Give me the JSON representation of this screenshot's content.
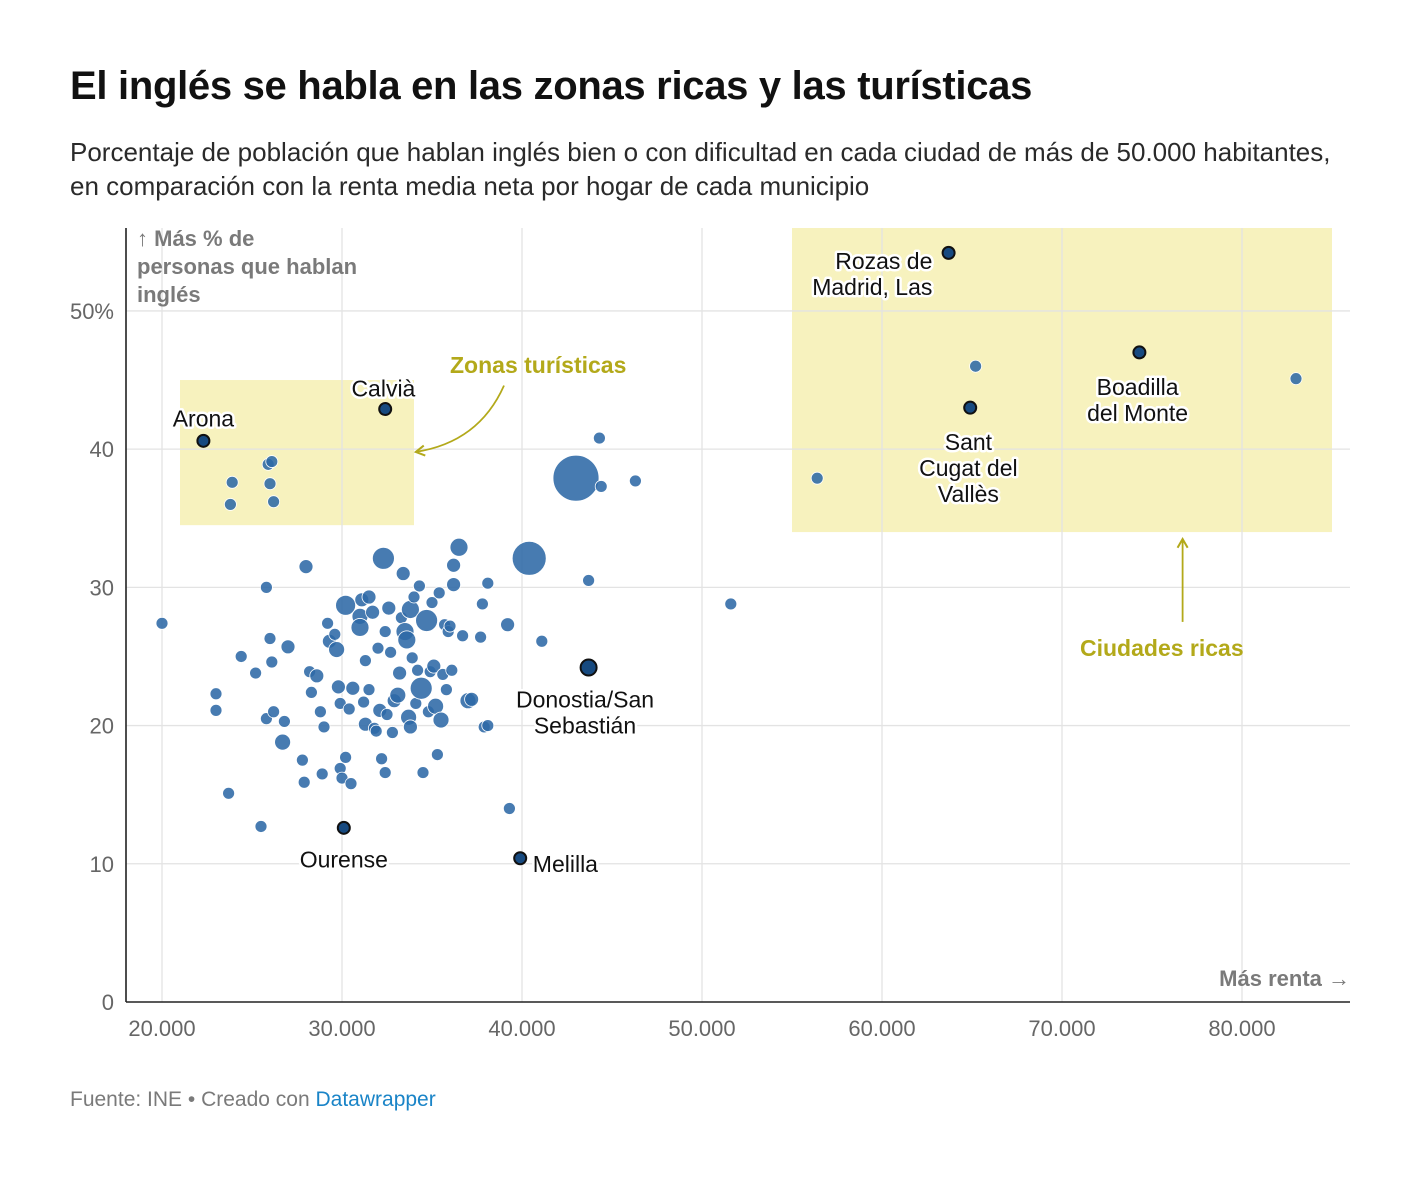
{
  "title": "El inglés se habla en las zonas ricas y las turísticas",
  "subtitle": "Porcentaje de población que hablan inglés bien o con dificultad en cada ciudad de más de 50.000 habitantes, en comparación con la renta media neta por hogar de cada municipio",
  "footer": {
    "source": "Fuente: INE • Creado con",
    "tool": "Datawrapper"
  },
  "colors": {
    "dot": "#2e69a6",
    "highlight": "#174a80",
    "zone": "#f7f2be",
    "zone_text": "#b3a91a",
    "grid": "#e3e3e3"
  },
  "chart_data": {
    "type": "scatter",
    "title": "El inglés se habla en las zonas ricas y las turísticas",
    "xlabel": "Más renta →",
    "ylabel": [
      "↑ Más % de",
      "personas que hablan",
      "inglés"
    ],
    "xlim": [
      18000,
      86000
    ],
    "ylim": [
      0,
      56
    ],
    "xticks": [
      {
        "v": 20000,
        "label": "20.000"
      },
      {
        "v": 30000,
        "label": "30.000"
      },
      {
        "v": 40000,
        "label": "40.000"
      },
      {
        "v": 50000,
        "label": "50.000"
      },
      {
        "v": 60000,
        "label": "60.000"
      },
      {
        "v": 70000,
        "label": "70.000"
      },
      {
        "v": 80000,
        "label": "80.000"
      }
    ],
    "yticks": [
      {
        "v": 0,
        "label": "0"
      },
      {
        "v": 10,
        "label": "10"
      },
      {
        "v": 20,
        "label": "20"
      },
      {
        "v": 30,
        "label": "30"
      },
      {
        "v": 40,
        "label": "40"
      },
      {
        "v": 50,
        "label": "50%"
      }
    ],
    "zones": [
      {
        "name": "Zonas turísticas",
        "x0": 21000,
        "x1": 34000,
        "y0": 34.5,
        "y1": 45
      },
      {
        "name": "Ciudades ricas",
        "x0": 55000,
        "x1": 85000,
        "y0": 34,
        "y1": 56
      }
    ],
    "zone_labels": [
      {
        "text": "Zonas turísticas",
        "x": 36000,
        "y": 46.1,
        "anchor": "start",
        "arrow": [
          [
            39000,
            44.6
          ],
          [
            37600,
            40.5
          ],
          [
            34100,
            39.8
          ]
        ]
      },
      {
        "text": "Ciudades ricas",
        "x": 71000,
        "y": 25.6,
        "anchor": "start",
        "arrow": [
          [
            76700,
            27.5
          ],
          [
            76700,
            33.5
          ]
        ]
      }
    ],
    "labeled_points": [
      {
        "name": "Rozas de Madrid, Las",
        "lines": [
          "Rozas de",
          "Madrid, Las"
        ],
        "x": 63700,
        "y": 54.2,
        "lx": 62800,
        "ly": 53.6,
        "anchor": "end"
      },
      {
        "name": "Boadilla del Monte",
        "lines": [
          "Boadilla",
          "del Monte"
        ],
        "x": 74300,
        "y": 47,
        "lx": 74200,
        "ly": 44.5,
        "anchor": "middle"
      },
      {
        "name": "Sant Cugat del Vallès",
        "lines": [
          "Sant",
          "Cugat del",
          "Vallès"
        ],
        "x": 64900,
        "y": 43,
        "lx": 64800,
        "ly": 40.5,
        "anchor": "middle"
      },
      {
        "name": "Calvià",
        "lines": [
          "Calvià"
        ],
        "x": 32400,
        "y": 42.9,
        "lx": 32300,
        "ly": 44.4,
        "anchor": "middle"
      },
      {
        "name": "Arona",
        "lines": [
          "Arona"
        ],
        "x": 22300,
        "y": 40.6,
        "lx": 22300,
        "ly": 42.2,
        "anchor": "middle"
      },
      {
        "name": "Donostia/San Sebastián",
        "lines": [
          "Donostia/San",
          "Sebastián"
        ],
        "x": 43700,
        "y": 24.2,
        "lx": 43500,
        "ly": 21.9,
        "anchor": "middle",
        "r": 8
      },
      {
        "name": "Ourense",
        "lines": [
          "Ourense"
        ],
        "x": 30100,
        "y": 12.6,
        "lx": 30100,
        "ly": 10.3,
        "anchor": "middle"
      },
      {
        "name": "Melilla",
        "lines": [
          "Melilla"
        ],
        "x": 39900,
        "y": 10.4,
        "lx": 40600,
        "ly": 10,
        "anchor": "start"
      }
    ],
    "points": [
      {
        "x": 20000,
        "y": 27.4,
        "r": 6
      },
      {
        "x": 23000,
        "y": 22.3,
        "r": 6
      },
      {
        "x": 23000,
        "y": 21.1,
        "r": 6
      },
      {
        "x": 23700,
        "y": 15.1,
        "r": 6
      },
      {
        "x": 23900,
        "y": 37.6,
        "r": 6
      },
      {
        "x": 23800,
        "y": 36,
        "r": 6
      },
      {
        "x": 24400,
        "y": 25,
        "r": 6
      },
      {
        "x": 25200,
        "y": 23.8,
        "r": 6
      },
      {
        "x": 25500,
        "y": 12.7,
        "r": 6
      },
      {
        "x": 25800,
        "y": 20.5,
        "r": 6
      },
      {
        "x": 25900,
        "y": 38.9,
        "r": 6
      },
      {
        "x": 26100,
        "y": 39.1,
        "r": 6
      },
      {
        "x": 26000,
        "y": 37.5,
        "r": 6
      },
      {
        "x": 26200,
        "y": 36.2,
        "r": 6
      },
      {
        "x": 25800,
        "y": 30,
        "r": 6
      },
      {
        "x": 26000,
        "y": 26.3,
        "r": 6
      },
      {
        "x": 26100,
        "y": 24.6,
        "r": 6
      },
      {
        "x": 26200,
        "y": 21,
        "r": 6
      },
      {
        "x": 26700,
        "y": 18.8,
        "r": 8
      },
      {
        "x": 26800,
        "y": 20.3,
        "r": 6
      },
      {
        "x": 27000,
        "y": 25.7,
        "r": 7
      },
      {
        "x": 27800,
        "y": 17.5,
        "r": 6
      },
      {
        "x": 27900,
        "y": 15.9,
        "r": 6
      },
      {
        "x": 28000,
        "y": 31.5,
        "r": 7
      },
      {
        "x": 28200,
        "y": 23.9,
        "r": 6
      },
      {
        "x": 28300,
        "y": 22.4,
        "r": 6
      },
      {
        "x": 28600,
        "y": 23.6,
        "r": 7
      },
      {
        "x": 28800,
        "y": 21,
        "r": 6
      },
      {
        "x": 28900,
        "y": 16.5,
        "r": 6
      },
      {
        "x": 29000,
        "y": 19.9,
        "r": 6
      },
      {
        "x": 29200,
        "y": 27.4,
        "r": 6
      },
      {
        "x": 29300,
        "y": 26.1,
        "r": 7
      },
      {
        "x": 29600,
        "y": 26.6,
        "r": 6
      },
      {
        "x": 29700,
        "y": 25.5,
        "r": 8
      },
      {
        "x": 29800,
        "y": 22.8,
        "r": 7
      },
      {
        "x": 29900,
        "y": 21.6,
        "r": 6
      },
      {
        "x": 29900,
        "y": 16.9,
        "r": 6
      },
      {
        "x": 30000,
        "y": 16.2,
        "r": 6
      },
      {
        "x": 30200,
        "y": 17.7,
        "r": 6
      },
      {
        "x": 30200,
        "y": 28.7,
        "r": 10
      },
      {
        "x": 30400,
        "y": 21.2,
        "r": 6
      },
      {
        "x": 30500,
        "y": 15.8,
        "r": 6
      },
      {
        "x": 30600,
        "y": 22.7,
        "r": 7
      },
      {
        "x": 31000,
        "y": 27.9,
        "r": 8
      },
      {
        "x": 31100,
        "y": 29.1,
        "r": 7
      },
      {
        "x": 31000,
        "y": 27.1,
        "r": 9
      },
      {
        "x": 31200,
        "y": 21.7,
        "r": 6
      },
      {
        "x": 31300,
        "y": 20.1,
        "r": 7
      },
      {
        "x": 31300,
        "y": 24.7,
        "r": 6
      },
      {
        "x": 31500,
        "y": 29.3,
        "r": 7
      },
      {
        "x": 31500,
        "y": 22.6,
        "r": 6
      },
      {
        "x": 31700,
        "y": 28.2,
        "r": 7
      },
      {
        "x": 31800,
        "y": 19.8,
        "r": 6
      },
      {
        "x": 31900,
        "y": 19.6,
        "r": 6
      },
      {
        "x": 32000,
        "y": 25.6,
        "r": 6
      },
      {
        "x": 32100,
        "y": 21.1,
        "r": 7
      },
      {
        "x": 32200,
        "y": 17.6,
        "r": 6
      },
      {
        "x": 32300,
        "y": 32.1,
        "r": 11
      },
      {
        "x": 32400,
        "y": 26.8,
        "r": 6
      },
      {
        "x": 32400,
        "y": 16.6,
        "r": 6
      },
      {
        "x": 32500,
        "y": 20.8,
        "r": 6
      },
      {
        "x": 32600,
        "y": 28.5,
        "r": 7
      },
      {
        "x": 32700,
        "y": 25.3,
        "r": 6
      },
      {
        "x": 32800,
        "y": 19.5,
        "r": 6
      },
      {
        "x": 32900,
        "y": 21.8,
        "r": 7
      },
      {
        "x": 33100,
        "y": 22.2,
        "r": 8
      },
      {
        "x": 33200,
        "y": 23.8,
        "r": 7
      },
      {
        "x": 33300,
        "y": 27.8,
        "r": 6
      },
      {
        "x": 33400,
        "y": 31,
        "r": 7
      },
      {
        "x": 33500,
        "y": 26.8,
        "r": 9
      },
      {
        "x": 33600,
        "y": 26.2,
        "r": 9
      },
      {
        "x": 33700,
        "y": 20.6,
        "r": 8
      },
      {
        "x": 33800,
        "y": 28.4,
        "r": 9
      },
      {
        "x": 33800,
        "y": 19.9,
        "r": 7
      },
      {
        "x": 33900,
        "y": 24.9,
        "r": 6
      },
      {
        "x": 34000,
        "y": 29.3,
        "r": 6
      },
      {
        "x": 34100,
        "y": 21.6,
        "r": 6
      },
      {
        "x": 34200,
        "y": 24,
        "r": 6
      },
      {
        "x": 34300,
        "y": 30.1,
        "r": 6
      },
      {
        "x": 34400,
        "y": 22.7,
        "r": 11
      },
      {
        "x": 34500,
        "y": 16.6,
        "r": 6
      },
      {
        "x": 34700,
        "y": 27.6,
        "r": 11
      },
      {
        "x": 34800,
        "y": 21,
        "r": 6
      },
      {
        "x": 34900,
        "y": 23.9,
        "r": 6
      },
      {
        "x": 35000,
        "y": 28.9,
        "r": 6
      },
      {
        "x": 35100,
        "y": 24.3,
        "r": 7
      },
      {
        "x": 35200,
        "y": 21.4,
        "r": 8
      },
      {
        "x": 35300,
        "y": 17.9,
        "r": 6
      },
      {
        "x": 35400,
        "y": 29.6,
        "r": 6
      },
      {
        "x": 35500,
        "y": 20.4,
        "r": 8
      },
      {
        "x": 35600,
        "y": 23.7,
        "r": 6
      },
      {
        "x": 35700,
        "y": 27.3,
        "r": 6
      },
      {
        "x": 35800,
        "y": 22.6,
        "r": 6
      },
      {
        "x": 35900,
        "y": 26.8,
        "r": 6
      },
      {
        "x": 36000,
        "y": 27.2,
        "r": 6
      },
      {
        "x": 36100,
        "y": 24,
        "r": 6
      },
      {
        "x": 36200,
        "y": 30.2,
        "r": 7
      },
      {
        "x": 36200,
        "y": 31.6,
        "r": 7
      },
      {
        "x": 36500,
        "y": 32.9,
        "r": 9
      },
      {
        "x": 36700,
        "y": 26.5,
        "r": 6
      },
      {
        "x": 37000,
        "y": 21.8,
        "r": 8
      },
      {
        "x": 37200,
        "y": 21.9,
        "r": 7
      },
      {
        "x": 37700,
        "y": 26.4,
        "r": 6
      },
      {
        "x": 37800,
        "y": 28.8,
        "r": 6
      },
      {
        "x": 37900,
        "y": 19.9,
        "r": 6
      },
      {
        "x": 38100,
        "y": 30.3,
        "r": 6
      },
      {
        "x": 38100,
        "y": 20,
        "r": 6
      },
      {
        "x": 39200,
        "y": 27.3,
        "r": 7
      },
      {
        "x": 39300,
        "y": 14,
        "r": 6
      },
      {
        "x": 40400,
        "y": 32.1,
        "r": 17
      },
      {
        "x": 41100,
        "y": 26.1,
        "r": 6
      },
      {
        "x": 43000,
        "y": 37.9,
        "r": 23
      },
      {
        "x": 43700,
        "y": 30.5,
        "r": 6
      },
      {
        "x": 44300,
        "y": 40.8,
        "r": 6
      },
      {
        "x": 44400,
        "y": 37.3,
        "r": 6
      },
      {
        "x": 46300,
        "y": 37.7,
        "r": 6
      },
      {
        "x": 51600,
        "y": 28.8,
        "r": 6
      },
      {
        "x": 56400,
        "y": 37.9,
        "r": 6
      },
      {
        "x": 65200,
        "y": 46,
        "r": 6
      },
      {
        "x": 83000,
        "y": 45.1,
        "r": 6
      }
    ]
  }
}
